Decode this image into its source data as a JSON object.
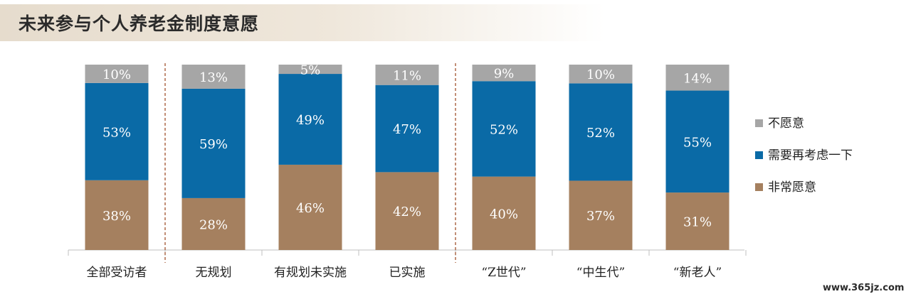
{
  "title": "未来参与个人养老金制度意愿",
  "watermark": "www.365jz.com",
  "chart_data": {
    "type": "bar",
    "stacked": true,
    "percent_stacked": true,
    "categories": [
      "全部受访者",
      "无规划",
      "有规划未实施",
      "已实施",
      "“Z世代”",
      "“中生代”",
      "“新老人”"
    ],
    "series": [
      {
        "name": "非常愿意",
        "color": "#a5805f",
        "values": [
          38,
          28,
          46,
          42,
          40,
          37,
          31
        ]
      },
      {
        "name": "需要再考虑一下",
        "color": "#0a6aa6",
        "values": [
          53,
          59,
          49,
          47,
          52,
          52,
          55
        ]
      },
      {
        "name": "不愿意",
        "color": "#a6a6a6",
        "values": [
          10,
          13,
          5,
          11,
          9,
          10,
          14
        ]
      }
    ],
    "value_suffix": "%",
    "group_separators_after": [
      0,
      3
    ],
    "legend": [
      "不愿意",
      "需要再考虑一下",
      "非常愿意"
    ],
    "legend_position": "right",
    "ylim": [
      0,
      100
    ],
    "grid": false
  }
}
